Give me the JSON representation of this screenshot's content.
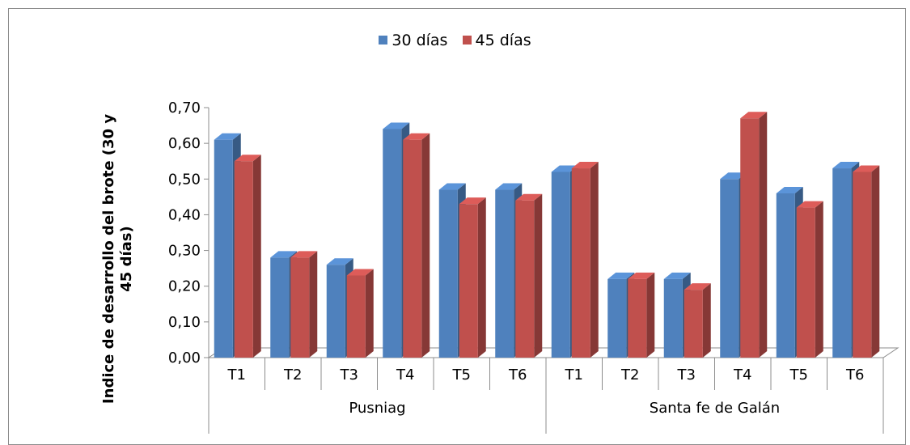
{
  "chart_data": {
    "type": "bar",
    "title": "",
    "ylabel_line1": "Indice de desarrollo del brote (30 y",
    "ylabel_line2": "45 días)",
    "xlabel": "",
    "ylim": [
      0,
      0.7
    ],
    "yticks": [
      "0,00",
      "0,10",
      "0,20",
      "0,30",
      "0,40",
      "0,50",
      "0,60",
      "0,70"
    ],
    "groups": [
      {
        "name": "Pusniag",
        "categories": [
          "T1",
          "T2",
          "T3",
          "T4",
          "T5",
          "T6"
        ]
      },
      {
        "name": "Santa fe de Galán",
        "categories": [
          "T1",
          "T2",
          "T3",
          "T4",
          "T5",
          "T6"
        ]
      }
    ],
    "categories": [
      "T1",
      "T2",
      "T3",
      "T4",
      "T5",
      "T6",
      "T1",
      "T2",
      "T3",
      "T4",
      "T5",
      "T6"
    ],
    "series": [
      {
        "name": "30 días",
        "color": "#4f81bd",
        "values": [
          0.61,
          0.28,
          0.26,
          0.64,
          0.47,
          0.47,
          0.52,
          0.22,
          0.22,
          0.5,
          0.46,
          0.53
        ]
      },
      {
        "name": "45 días",
        "color": "#c0504d",
        "values": [
          0.55,
          0.28,
          0.23,
          0.61,
          0.43,
          0.44,
          0.53,
          0.22,
          0.19,
          0.67,
          0.42,
          0.52
        ]
      }
    ],
    "legend_position": "top",
    "grid": false
  }
}
